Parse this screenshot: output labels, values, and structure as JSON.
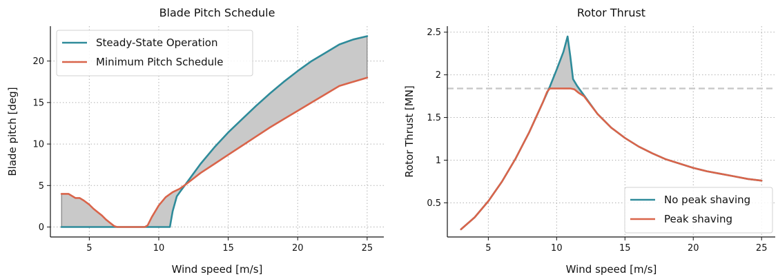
{
  "chart_data": [
    {
      "type": "line",
      "title": "Blade Pitch Schedule",
      "xlabel": "Wind speed [m/s]",
      "ylabel": "Blade pitch [deg]",
      "xlim": [
        2.2,
        26.2
      ],
      "ylim": [
        -1.2,
        24.2
      ],
      "xticks": [
        5,
        10,
        15,
        20,
        25
      ],
      "yticks": [
        0,
        5,
        10,
        15,
        20
      ],
      "grid": true,
      "legend": "top-left",
      "shade_between": true,
      "series": [
        {
          "name": "Steady-State Operation",
          "color": "#2e8b9a",
          "x": [
            3,
            4,
            5,
            6,
            7,
            8,
            9,
            10,
            10.5,
            10.8,
            11,
            11.3,
            11.6,
            12,
            13,
            14,
            15,
            16,
            17,
            18,
            19,
            20,
            21,
            22,
            23,
            24,
            25
          ],
          "y": [
            0,
            0,
            0,
            0,
            0,
            0,
            0,
            0,
            0,
            0,
            1.9,
            3.7,
            4.4,
            5.3,
            7.6,
            9.6,
            11.4,
            13.0,
            14.6,
            16.1,
            17.5,
            18.8,
            20.0,
            21.0,
            22.0,
            22.6,
            23.0
          ]
        },
        {
          "name": "Minimum Pitch Schedule",
          "color": "#d9644a",
          "x": [
            3,
            3.5,
            4,
            4.3,
            4.6,
            5,
            5.3,
            5.6,
            5.9,
            6.2,
            6.5,
            6.8,
            7,
            7.5,
            8,
            8.5,
            9,
            9.2,
            9.5,
            10,
            10.5,
            11,
            11.5,
            12,
            13,
            14,
            15,
            16,
            17,
            18,
            19,
            20,
            21,
            22,
            23,
            24,
            25
          ],
          "y": [
            4,
            4,
            3.5,
            3.5,
            3.2,
            2.7,
            2.2,
            1.8,
            1.4,
            0.9,
            0.5,
            0.1,
            0,
            0,
            0,
            0,
            0,
            0.2,
            1.2,
            2.6,
            3.6,
            4.2,
            4.6,
            5.2,
            6.5,
            7.6,
            8.7,
            9.8,
            10.9,
            12.0,
            13.0,
            14.0,
            15.0,
            16.0,
            17.0,
            17.5,
            18.0
          ]
        }
      ]
    },
    {
      "type": "line",
      "title": "Rotor Thrust",
      "xlabel": "Wind speed [m/s]",
      "ylabel": "Rotor Thrust [MN]",
      "xlim": [
        2.0,
        26.0
      ],
      "ylim": [
        0.1,
        2.57
      ],
      "xticks": [
        5,
        10,
        15,
        20,
        25
      ],
      "yticks": [
        0.5,
        1.0,
        1.5,
        2.0,
        2.5
      ],
      "grid": true,
      "legend": "bottom-right",
      "shade_between": true,
      "reference_line": {
        "y": 1.84,
        "color": "#c8c8c8"
      },
      "series": [
        {
          "name": "No peak shaving",
          "color": "#2e8b9a",
          "x": [
            3,
            4,
            5,
            6,
            7,
            8,
            9,
            9.5,
            10,
            10.5,
            10.8,
            11,
            11.2,
            11.5,
            12,
            13,
            14,
            15,
            16,
            17,
            18,
            19,
            20,
            21,
            22,
            23,
            24,
            25
          ],
          "y": [
            0.19,
            0.33,
            0.52,
            0.75,
            1.02,
            1.33,
            1.68,
            1.86,
            2.06,
            2.27,
            2.45,
            2.22,
            1.95,
            1.87,
            1.76,
            1.54,
            1.38,
            1.26,
            1.16,
            1.08,
            1.01,
            0.96,
            0.91,
            0.87,
            0.84,
            0.81,
            0.78,
            0.76
          ]
        },
        {
          "name": "Peak shaving",
          "color": "#d9644a",
          "x": [
            3,
            4,
            5,
            6,
            7,
            8,
            9,
            9.3,
            9.5,
            10,
            10.5,
            11,
            11.3,
            11.6,
            12,
            13,
            14,
            15,
            16,
            17,
            18,
            19,
            20,
            21,
            22,
            23,
            24,
            25
          ],
          "y": [
            0.19,
            0.33,
            0.52,
            0.75,
            1.02,
            1.33,
            1.68,
            1.8,
            1.84,
            1.84,
            1.84,
            1.84,
            1.83,
            1.79,
            1.75,
            1.54,
            1.38,
            1.26,
            1.16,
            1.08,
            1.01,
            0.96,
            0.91,
            0.87,
            0.84,
            0.81,
            0.78,
            0.76
          ]
        }
      ]
    }
  ]
}
